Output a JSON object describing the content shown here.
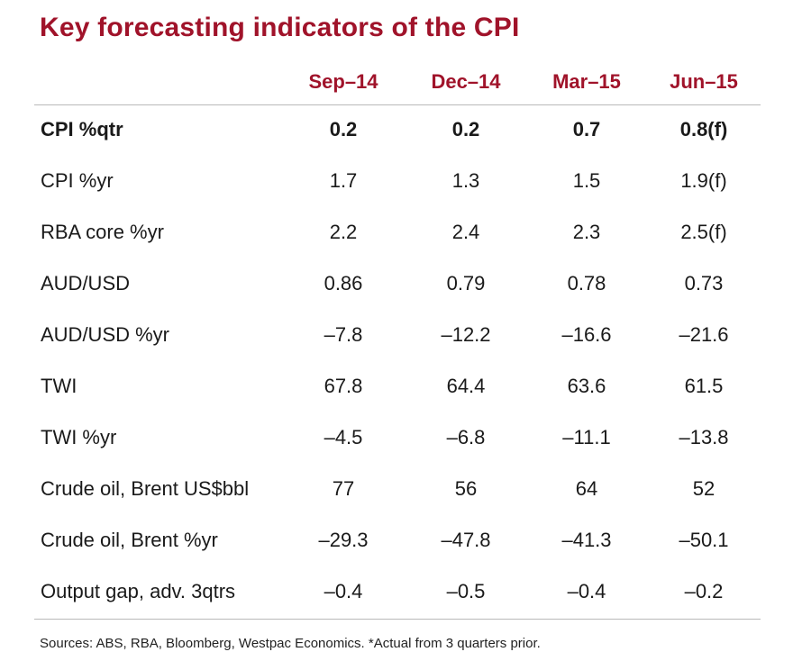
{
  "title": "Key forecasting indicators of the CPI",
  "chart_data": {
    "type": "table",
    "title": "Key forecasting indicators of the CPI",
    "columns": [
      "Sep–14",
      "Dec–14",
      "Mar–15",
      "Jun–15"
    ],
    "rows": [
      {
        "label": "CPI %qtr",
        "values": [
          "0.2",
          "0.2",
          "0.7",
          "0.8(f)"
        ],
        "bold": true
      },
      {
        "label": "CPI %yr",
        "values": [
          "1.7",
          "1.3",
          "1.5",
          "1.9(f)"
        ]
      },
      {
        "label": "RBA core %yr",
        "values": [
          "2.2",
          "2.4",
          "2.3",
          "2.5(f)"
        ]
      },
      {
        "label": "AUD/USD",
        "values": [
          "0.86",
          "0.79",
          "0.78",
          "0.73"
        ]
      },
      {
        "label": "AUD/USD %yr",
        "values": [
          "–7.8",
          "–12.2",
          "–16.6",
          "–21.6"
        ]
      },
      {
        "label": "TWI",
        "values": [
          "67.8",
          "64.4",
          "63.6",
          "61.5"
        ]
      },
      {
        "label": "TWI %yr",
        "values": [
          "–4.5",
          "–6.8",
          "–11.1",
          "–13.8"
        ]
      },
      {
        "label": "Crude oil, Brent US$bbl",
        "values": [
          "77",
          "56",
          "64",
          "52"
        ]
      },
      {
        "label": "Crude oil, Brent %yr",
        "values": [
          "–29.3",
          "–47.8",
          "–41.3",
          "–50.1"
        ]
      },
      {
        "label": "Output gap, adv. 3qtrs",
        "values": [
          "–0.4",
          "–0.5",
          "–0.4",
          "–0.2"
        ]
      }
    ],
    "accent_color": "#a0132a"
  },
  "source": "Sources: ABS, RBA, Bloomberg, Westpac Economics. *Actual from 3 quarters prior."
}
